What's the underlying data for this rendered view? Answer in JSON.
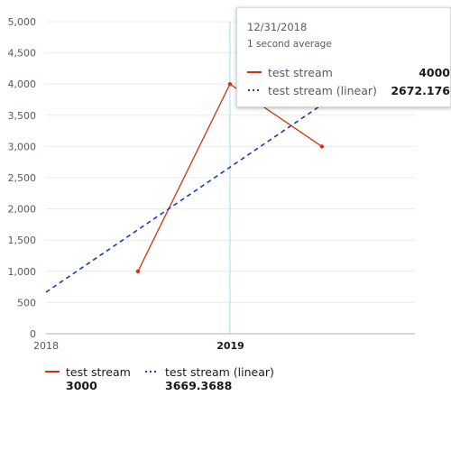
{
  "colors": {
    "series_solid": "#d13212",
    "series_linear": "#1f3ab7",
    "grid": "#e9ebed",
    "cursor": "#a6d8f0",
    "axis": "#aab7b8"
  },
  "chart_data": {
    "type": "line",
    "x_ticks": [
      "2018",
      "2019"
    ],
    "x_tick_bold": "2019",
    "y_ticks": [
      "0",
      "500",
      "1,000",
      "1,500",
      "2,000",
      "2,500",
      "3,000",
      "3,500",
      "4,000",
      "4,500",
      "5,000"
    ],
    "ylim": [
      0,
      5000
    ],
    "xlim": [
      "2018-01-01",
      "2020-01-01"
    ],
    "grid": true,
    "legend_position": "bottom",
    "cursor_x": "2018-12-31",
    "series": [
      {
        "name": "test stream",
        "style": "solid",
        "markers": true,
        "points": [
          {
            "x": "2018-07-02",
            "y": 1000
          },
          {
            "x": "2018-12-31",
            "y": 4000
          },
          {
            "x": "2019-07-01",
            "y": 3000
          }
        ]
      },
      {
        "name": "test stream (linear)",
        "style": "dashed",
        "markers": false,
        "points": [
          {
            "x": "2018-01-01",
            "y": 665.6312
          },
          {
            "x": "2019-07-01",
            "y": 3669.3688
          }
        ]
      }
    ]
  },
  "tooltip": {
    "date": "12/31/2018",
    "subtitle": "1 second average",
    "rows": [
      {
        "name": "test stream",
        "value": "4000"
      },
      {
        "name": "test stream (linear)",
        "value": "2672.176"
      }
    ]
  },
  "legend": [
    {
      "name": "test stream",
      "value": "3000"
    },
    {
      "name": "test stream (linear)",
      "value": "3669.3688"
    }
  ]
}
